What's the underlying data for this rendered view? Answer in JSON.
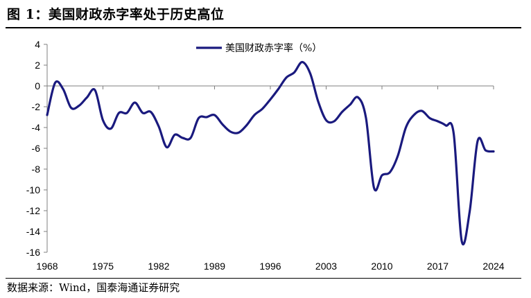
{
  "header": {
    "title": "图 1：美国财政赤字率处于历史高位"
  },
  "footer": {
    "source": "数据来源：Wind，国泰海通证券研究"
  },
  "colors": {
    "series": "#1a1a7e",
    "axis": "#7f7f7f",
    "text": "#000000"
  },
  "chart_data": {
    "type": "line",
    "title": "",
    "xlabel": "",
    "ylabel": "",
    "xlim": [
      1968,
      2024
    ],
    "ylim": [
      -16,
      4
    ],
    "yticks": [
      4,
      2,
      0,
      -2,
      -4,
      -6,
      -8,
      -10,
      -12,
      -14,
      -16
    ],
    "xticks": [
      1968,
      1975,
      1982,
      1989,
      1996,
      2003,
      2010,
      2017,
      2024
    ],
    "grid": false,
    "legend": "top-center",
    "series": [
      {
        "name": "美国财政赤字率（%）",
        "x": [
          1968,
          1969,
          1970,
          1971,
          1972,
          1973,
          1974,
          1975,
          1976,
          1977,
          1978,
          1979,
          1980,
          1981,
          1982,
          1983,
          1984,
          1985,
          1986,
          1987,
          1988,
          1989,
          1990,
          1991,
          1992,
          1993,
          1994,
          1995,
          1996,
          1997,
          1998,
          1999,
          2000,
          2001,
          2002,
          2003,
          2004,
          2005,
          2006,
          2007,
          2008,
          2009,
          2010,
          2011,
          2012,
          2013,
          2014,
          2015,
          2016,
          2017,
          2018,
          2019,
          2020,
          2021,
          2022,
          2023,
          2024
        ],
        "values": [
          -2.8,
          0.3,
          -0.3,
          -2.1,
          -1.9,
          -1.1,
          -0.4,
          -3.3,
          -4.1,
          -2.6,
          -2.6,
          -1.6,
          -2.6,
          -2.5,
          -3.9,
          -5.9,
          -4.7,
          -5.0,
          -5.0,
          -3.1,
          -3.0,
          -2.8,
          -3.7,
          -4.4,
          -4.5,
          -3.8,
          -2.8,
          -2.2,
          -1.3,
          -0.3,
          0.8,
          1.3,
          2.3,
          1.2,
          -1.5,
          -3.3,
          -3.4,
          -2.5,
          -1.8,
          -1.1,
          -3.1,
          -9.8,
          -8.6,
          -8.3,
          -6.7,
          -4.0,
          -2.8,
          -2.4,
          -3.1,
          -3.4,
          -3.8,
          -4.6,
          -14.9,
          -12.1,
          -5.3,
          -6.2,
          -6.3
        ]
      }
    ]
  }
}
